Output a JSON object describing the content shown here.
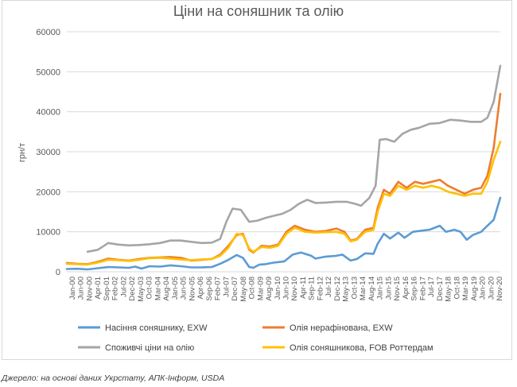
{
  "chart_data": {
    "type": "line",
    "title": "Ціни на соняшник та олію",
    "ylabel": "грн/т",
    "ylim": [
      0,
      60000
    ],
    "yticks": [
      "0",
      "10000",
      "20000",
      "30000",
      "40000",
      "50000",
      "60000"
    ],
    "grid": true,
    "legend_position": "bottom",
    "xticks": [
      "Jan-00",
      "Jun-00",
      "Nov-00",
      "Apr-01",
      "Sep-01",
      "Feb-02",
      "Jul-02",
      "Dec-02",
      "May-03",
      "Oct-03",
      "Mar-04",
      "Aug-04",
      "Jan-05",
      "Jun-05",
      "Nov-05",
      "Apr-06",
      "Sep-06",
      "Feb-07",
      "Jul-07",
      "Dec-07",
      "May-08",
      "Oct-08",
      "Mar-09",
      "Aug-09",
      "Jan-10",
      "Jun-10",
      "Nov-10",
      "Apr-11",
      "Sep-11",
      "Feb-12",
      "Jul-12",
      "Dec-12",
      "May-13",
      "Oct-13",
      "Mar-14",
      "Aug-14",
      "Jan-15",
      "Jun-15",
      "Nov-15",
      "Apr-16",
      "Sep-16",
      "Feb-17",
      "Jul-17",
      "Dec-17",
      "May-18",
      "Oct-18",
      "Mar-19",
      "Aug-19",
      "Jan-20",
      "Jun-20",
      "Nov-20"
    ],
    "x_start": 2000.0,
    "x_end": 2020.92,
    "series": [
      {
        "name": "Насіння соняшнику, EXW",
        "color": "#5b9bd5",
        "points": [
          [
            2000.0,
            700
          ],
          [
            2000.5,
            750
          ],
          [
            2001.0,
            600
          ],
          [
            2001.5,
            900
          ],
          [
            2002.0,
            1200
          ],
          [
            2002.5,
            1100
          ],
          [
            2003.0,
            1000
          ],
          [
            2003.3,
            1300
          ],
          [
            2003.6,
            800
          ],
          [
            2004.0,
            1400
          ],
          [
            2004.5,
            1300
          ],
          [
            2005.0,
            1600
          ],
          [
            2005.5,
            1400
          ],
          [
            2006.0,
            1100
          ],
          [
            2006.5,
            1100
          ],
          [
            2007.0,
            1200
          ],
          [
            2007.4,
            2000
          ],
          [
            2007.8,
            3000
          ],
          [
            2008.2,
            4200
          ],
          [
            2008.5,
            3500
          ],
          [
            2008.8,
            1200
          ],
          [
            2009.0,
            1000
          ],
          [
            2009.3,
            1800
          ],
          [
            2009.6,
            1900
          ],
          [
            2010.0,
            2300
          ],
          [
            2010.5,
            2600
          ],
          [
            2010.9,
            4300
          ],
          [
            2011.3,
            4800
          ],
          [
            2011.8,
            4000
          ],
          [
            2012.0,
            3300
          ],
          [
            2012.5,
            3800
          ],
          [
            2013.0,
            4000
          ],
          [
            2013.3,
            4300
          ],
          [
            2013.7,
            2800
          ],
          [
            2014.0,
            3200
          ],
          [
            2014.4,
            4600
          ],
          [
            2014.8,
            4500
          ],
          [
            2015.0,
            7000
          ],
          [
            2015.3,
            9500
          ],
          [
            2015.6,
            8300
          ],
          [
            2016.0,
            9800
          ],
          [
            2016.3,
            8500
          ],
          [
            2016.7,
            10000
          ],
          [
            2017.0,
            10200
          ],
          [
            2017.5,
            10500
          ],
          [
            2018.0,
            11500
          ],
          [
            2018.3,
            10000
          ],
          [
            2018.7,
            10500
          ],
          [
            2019.0,
            10000
          ],
          [
            2019.3,
            8000
          ],
          [
            2019.6,
            9200
          ],
          [
            2020.0,
            10000
          ],
          [
            2020.3,
            11500
          ],
          [
            2020.6,
            13000
          ],
          [
            2020.92,
            18500
          ]
        ]
      },
      {
        "name": "Олія нерафінована, EXW",
        "color": "#ed7d31",
        "points": [
          [
            2000.0,
            2200
          ],
          [
            2000.5,
            2000
          ],
          [
            2001.0,
            1900
          ],
          [
            2001.5,
            2500
          ],
          [
            2002.0,
            3300
          ],
          [
            2002.5,
            3000
          ],
          [
            2003.0,
            2800
          ],
          [
            2003.5,
            3200
          ],
          [
            2004.0,
            3500
          ],
          [
            2004.5,
            3600
          ],
          [
            2005.0,
            3700
          ],
          [
            2005.5,
            3500
          ],
          [
            2006.0,
            2800
          ],
          [
            2006.5,
            3000
          ],
          [
            2007.0,
            3200
          ],
          [
            2007.4,
            4300
          ],
          [
            2007.8,
            6500
          ],
          [
            2008.2,
            9200
          ],
          [
            2008.5,
            9500
          ],
          [
            2008.8,
            5500
          ],
          [
            2009.0,
            4800
          ],
          [
            2009.4,
            6500
          ],
          [
            2009.8,
            6300
          ],
          [
            2010.2,
            6800
          ],
          [
            2010.6,
            10000
          ],
          [
            2011.0,
            11500
          ],
          [
            2011.5,
            10500
          ],
          [
            2012.0,
            10000
          ],
          [
            2012.5,
            10200
          ],
          [
            2013.0,
            10800
          ],
          [
            2013.4,
            10000
          ],
          [
            2013.7,
            7800
          ],
          [
            2014.0,
            8200
          ],
          [
            2014.4,
            10500
          ],
          [
            2014.8,
            11000
          ],
          [
            2015.0,
            16000
          ],
          [
            2015.3,
            20500
          ],
          [
            2015.6,
            19500
          ],
          [
            2016.0,
            22500
          ],
          [
            2016.4,
            21000
          ],
          [
            2016.8,
            22500
          ],
          [
            2017.2,
            22000
          ],
          [
            2017.6,
            22500
          ],
          [
            2018.0,
            23000
          ],
          [
            2018.4,
            21500
          ],
          [
            2018.8,
            20500
          ],
          [
            2019.2,
            19500
          ],
          [
            2019.6,
            20500
          ],
          [
            2020.0,
            21000
          ],
          [
            2020.3,
            24000
          ],
          [
            2020.6,
            31000
          ],
          [
            2020.92,
            44500
          ]
        ]
      },
      {
        "name": "Споживчі ціни на олію",
        "color": "#a5a5a5",
        "points": [
          [
            2001.0,
            5000
          ],
          [
            2001.5,
            5500
          ],
          [
            2002.0,
            7200
          ],
          [
            2002.5,
            6800
          ],
          [
            2003.0,
            6600
          ],
          [
            2003.5,
            6700
          ],
          [
            2004.0,
            6900
          ],
          [
            2004.5,
            7200
          ],
          [
            2005.0,
            7800
          ],
          [
            2005.5,
            7800
          ],
          [
            2006.0,
            7500
          ],
          [
            2006.5,
            7200
          ],
          [
            2007.0,
            7300
          ],
          [
            2007.4,
            8200
          ],
          [
            2007.7,
            12500
          ],
          [
            2008.0,
            15800
          ],
          [
            2008.4,
            15500
          ],
          [
            2008.8,
            12500
          ],
          [
            2009.2,
            12800
          ],
          [
            2009.6,
            13500
          ],
          [
            2010.0,
            14000
          ],
          [
            2010.4,
            14500
          ],
          [
            2010.8,
            15500
          ],
          [
            2011.2,
            17000
          ],
          [
            2011.6,
            18000
          ],
          [
            2012.0,
            17200
          ],
          [
            2012.5,
            17300
          ],
          [
            2013.0,
            17500
          ],
          [
            2013.5,
            17500
          ],
          [
            2013.9,
            17000
          ],
          [
            2014.2,
            16500
          ],
          [
            2014.6,
            18500
          ],
          [
            2014.9,
            21500
          ],
          [
            2015.1,
            33000
          ],
          [
            2015.4,
            33200
          ],
          [
            2015.8,
            32500
          ],
          [
            2016.2,
            34500
          ],
          [
            2016.6,
            35500
          ],
          [
            2017.0,
            36000
          ],
          [
            2017.5,
            37000
          ],
          [
            2018.0,
            37200
          ],
          [
            2018.5,
            38000
          ],
          [
            2019.0,
            37800
          ],
          [
            2019.5,
            37500
          ],
          [
            2020.0,
            37500
          ],
          [
            2020.3,
            38500
          ],
          [
            2020.6,
            42500
          ],
          [
            2020.92,
            51500
          ]
        ]
      },
      {
        "name": "Олія соняшникова,  FOB Роттердам",
        "color": "#ffc000",
        "points": [
          [
            2000.0,
            2000
          ],
          [
            2000.5,
            1900
          ],
          [
            2001.0,
            1800
          ],
          [
            2001.5,
            2300
          ],
          [
            2002.0,
            3000
          ],
          [
            2002.5,
            2900
          ],
          [
            2003.0,
            2700
          ],
          [
            2003.5,
            3000
          ],
          [
            2004.0,
            3400
          ],
          [
            2004.5,
            3500
          ],
          [
            2005.0,
            3300
          ],
          [
            2005.5,
            3100
          ],
          [
            2006.0,
            2900
          ],
          [
            2006.5,
            3100
          ],
          [
            2007.0,
            3200
          ],
          [
            2007.4,
            4000
          ],
          [
            2007.8,
            6000
          ],
          [
            2008.2,
            9500
          ],
          [
            2008.5,
            9200
          ],
          [
            2008.8,
            5800
          ],
          [
            2009.0,
            5000
          ],
          [
            2009.4,
            6200
          ],
          [
            2009.8,
            6000
          ],
          [
            2010.2,
            6500
          ],
          [
            2010.6,
            9500
          ],
          [
            2011.0,
            11000
          ],
          [
            2011.5,
            10000
          ],
          [
            2012.0,
            9800
          ],
          [
            2012.5,
            9900
          ],
          [
            2013.0,
            10000
          ],
          [
            2013.4,
            9500
          ],
          [
            2013.7,
            7600
          ],
          [
            2014.0,
            8000
          ],
          [
            2014.4,
            10000
          ],
          [
            2014.8,
            10500
          ],
          [
            2015.0,
            15000
          ],
          [
            2015.3,
            19500
          ],
          [
            2015.6,
            19000
          ],
          [
            2016.0,
            21500
          ],
          [
            2016.4,
            20500
          ],
          [
            2016.8,
            21500
          ],
          [
            2017.2,
            21000
          ],
          [
            2017.6,
            21500
          ],
          [
            2018.0,
            21000
          ],
          [
            2018.4,
            20000
          ],
          [
            2018.8,
            19500
          ],
          [
            2019.2,
            19000
          ],
          [
            2019.6,
            19500
          ],
          [
            2020.0,
            19500
          ],
          [
            2020.3,
            22500
          ],
          [
            2020.6,
            28000
          ],
          [
            2020.92,
            32500
          ]
        ]
      }
    ]
  },
  "source": "Джерело: на основі даних Укрстату, АПК-Інформ, USDA"
}
